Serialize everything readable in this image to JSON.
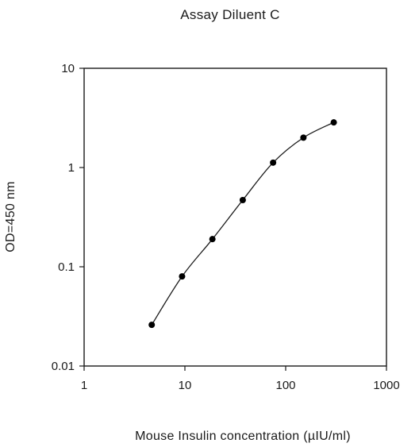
{
  "chart_data": {
    "type": "line",
    "title": "Assay Diluent C",
    "xlabel": "Mouse Insulin concentration (µIU/ml)",
    "ylabel": "OD=450 nm",
    "x_scale": "log",
    "y_scale": "log",
    "xlim": [
      1,
      1000
    ],
    "ylim": [
      0.01,
      10
    ],
    "x_ticks": [
      1,
      10,
      100,
      1000
    ],
    "x_tick_labels": [
      "1",
      "10",
      "100",
      "1000"
    ],
    "y_ticks": [
      0.01,
      0.1,
      1,
      10
    ],
    "y_tick_labels": [
      "0.01",
      "0.1",
      "1",
      "10"
    ],
    "grid": false,
    "legend": "none",
    "series": [
      {
        "marker": "circle",
        "color": "#000000",
        "x": [
          4.6875,
          9.375,
          18.75,
          37.5,
          75,
          150,
          300
        ],
        "y": [
          0.026,
          0.08,
          0.19,
          0.47,
          1.12,
          2.0,
          2.85
        ]
      }
    ]
  }
}
